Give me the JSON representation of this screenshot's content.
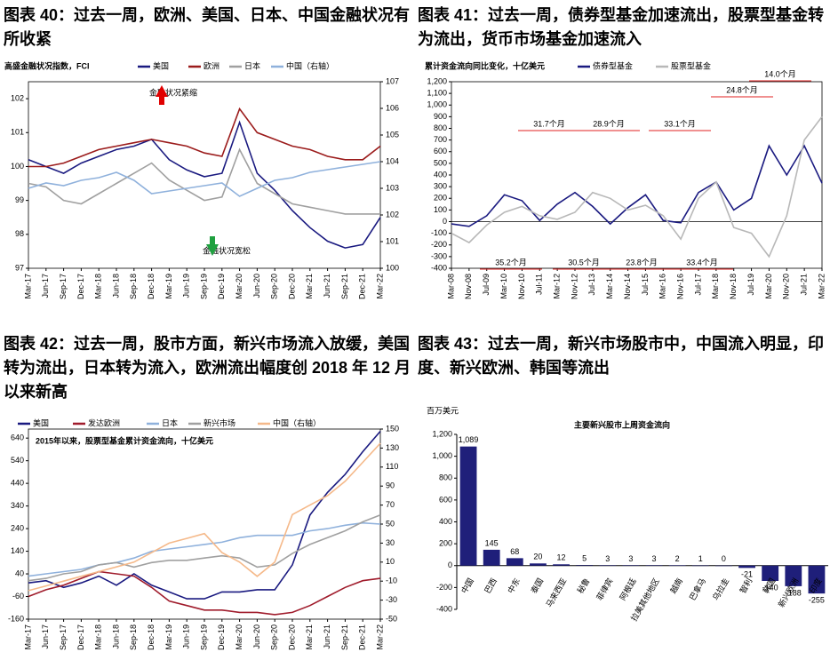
{
  "chart_data": [
    {
      "type": "line",
      "title": "图表 40：过去一周，欧洲、美国、日本、中国金融状况有所收紧",
      "ylabel": "高盛金融状况指数，FCI",
      "categories": [
        "Mar-17",
        "Jun-17",
        "Sep-17",
        "Dec-17",
        "Mar-18",
        "Jun-18",
        "Sep-18",
        "Dec-18",
        "Mar-19",
        "Jun-19",
        "Sep-19",
        "Dec-19",
        "Mar-20",
        "Jun-20",
        "Sep-20",
        "Dec-20",
        "Mar-21",
        "Jun-21",
        "Sep-21",
        "Dec-21",
        "Mar-22"
      ],
      "series": [
        {
          "name": "美国",
          "color": "#1a1a80",
          "values": [
            100.2,
            100.0,
            99.8,
            100.1,
            100.3,
            100.5,
            100.6,
            100.8,
            100.2,
            99.9,
            99.7,
            99.8,
            101.3,
            99.8,
            99.3,
            98.7,
            98.2,
            97.8,
            97.6,
            97.7,
            98.5
          ]
        },
        {
          "name": "欧洲",
          "color": "#9b1b1b",
          "values": [
            100.0,
            100.0,
            100.1,
            100.3,
            100.5,
            100.6,
            100.7,
            100.8,
            100.7,
            100.6,
            100.4,
            100.3,
            101.7,
            101.0,
            100.8,
            100.6,
            100.5,
            100.3,
            100.2,
            100.2,
            100.6
          ]
        },
        {
          "name": "日本",
          "color": "#a0a0a0",
          "values": [
            99.5,
            99.4,
            99.0,
            98.9,
            99.2,
            99.5,
            99.8,
            100.1,
            99.6,
            99.3,
            99.0,
            99.1,
            100.5,
            99.5,
            99.2,
            98.9,
            98.8,
            98.7,
            98.6,
            98.6,
            98.6
          ]
        },
        {
          "name": "中国（右轴）",
          "color": "#8fb1dc",
          "axis": "y2",
          "values": [
            103.0,
            103.2,
            103.1,
            103.3,
            103.4,
            103.6,
            103.3,
            102.8,
            102.9,
            103.0,
            103.1,
            103.2,
            102.7,
            103.0,
            103.3,
            103.4,
            103.6,
            103.7,
            103.8,
            103.9,
            104.0
          ]
        }
      ],
      "ylim": [
        97,
        102.5
      ],
      "yticks": [
        97,
        98,
        99,
        100,
        101,
        102
      ],
      "y2lim": [
        100,
        107
      ],
      "y2ticks": [
        100,
        101,
        102,
        103,
        104,
        105,
        106,
        107
      ],
      "annotations": [
        "金融状况紧缩",
        "金融状况宽松"
      ]
    },
    {
      "type": "line",
      "title": "图表 41：过去一周，债券型基金加速流出，股票型基金转为流出，货币市场基金加速流入",
      "ylabel": "累计资金流向同比变化，十亿美元",
      "categories": [
        "Mar-08",
        "Nov-08",
        "Jul-09",
        "Mar-10",
        "Nov-10",
        "Jul-11",
        "Mar-12",
        "Nov-12",
        "Jul-13",
        "Mar-14",
        "Nov-14",
        "Jul-15",
        "Mar-16",
        "Nov-16",
        "Jul-17",
        "Mar-18",
        "Nov-18",
        "Jul-19",
        "Mar-20",
        "Nov-20",
        "Jul-21",
        "Mar-22"
      ],
      "series": [
        {
          "name": "债券型基金",
          "color": "#1a1a80",
          "values": [
            -20,
            -40,
            50,
            230,
            180,
            10,
            150,
            250,
            130,
            -20,
            120,
            230,
            10,
            -10,
            250,
            340,
            100,
            200,
            650,
            400,
            650,
            330
          ]
        },
        {
          "name": "股票型基金",
          "color": "#b8b8b8",
          "values": [
            -100,
            -180,
            -30,
            80,
            130,
            50,
            20,
            80,
            250,
            200,
            100,
            140,
            50,
            -150,
            200,
            340,
            -50,
            -100,
            -300,
            50,
            700,
            900
          ]
        }
      ],
      "ylim": [
        -400,
        1200
      ],
      "yticks": [
        -400,
        -300,
        -200,
        -100,
        0,
        100,
        200,
        300,
        400,
        500,
        600,
        700,
        800,
        900,
        {
          "value": 1000,
          "label": "1,000"
        },
        {
          "value": 1100,
          "label": "1,100"
        },
        {
          "value": 1200,
          "label": "1,200"
        }
      ],
      "annotations": [
        "31.7个月",
        "28.9个月",
        "33.1个月",
        "24.8个月",
        "14.0个月",
        "35.2个月",
        "30.5个月",
        "23.8个月",
        "33.4个月"
      ]
    },
    {
      "type": "line",
      "title": "图表 42：过去一周，股市方面，新兴市场流入放缓，美国转为流出，日本转为流入，欧洲流出幅度创 2018 年 12 月以来新高",
      "ylabel": "2015年以来，股票型基金累计资金流向，十亿美元",
      "categories": [
        "Mar-17",
        "Jun-17",
        "Sep-17",
        "Dec-17",
        "Mar-18",
        "Jun-18",
        "Sep-18",
        "Dec-18",
        "Mar-19",
        "Jun-19",
        "Sep-19",
        "Dec-19",
        "Mar-20",
        "Jun-20",
        "Sep-20",
        "Dec-20",
        "Mar-21",
        "Jun-21",
        "Sep-21",
        "Dec-21",
        "Mar-22"
      ],
      "series": [
        {
          "name": "美国",
          "color": "#1a1a80",
          "values": [
            0,
            10,
            -20,
            0,
            30,
            -10,
            40,
            -10,
            -40,
            -70,
            -70,
            -40,
            -40,
            -30,
            -30,
            80,
            300,
            400,
            480,
            580,
            670
          ]
        },
        {
          "name": "发达欧洲",
          "color": "#a01c2c",
          "values": [
            -60,
            -30,
            -10,
            20,
            50,
            40,
            30,
            -20,
            -80,
            -100,
            -120,
            -120,
            -130,
            -130,
            -140,
            -130,
            -100,
            -60,
            -20,
            10,
            20
          ]
        },
        {
          "name": "日本",
          "color": "#8fb1dc",
          "values": [
            30,
            40,
            50,
            60,
            80,
            90,
            110,
            140,
            150,
            160,
            170,
            180,
            200,
            210,
            210,
            210,
            230,
            240,
            255,
            265,
            260
          ]
        },
        {
          "name": "新兴市场",
          "color": "#a0a0a0",
          "values": [
            10,
            20,
            40,
            50,
            80,
            90,
            70,
            90,
            100,
            100,
            110,
            120,
            110,
            70,
            80,
            130,
            170,
            200,
            230,
            270,
            300
          ]
        },
        {
          "name": "中国（右轴）",
          "color": "#f5b98a",
          "axis": "y2",
          "values": [
            -20,
            -15,
            -10,
            -5,
            0,
            5,
            10,
            20,
            30,
            35,
            40,
            20,
            10,
            -5,
            10,
            60,
            70,
            80,
            95,
            115,
            135
          ]
        }
      ],
      "ylim": [
        -160,
        680
      ],
      "yticks": [
        -160,
        -60,
        40,
        140,
        240,
        340,
        440,
        540,
        640
      ],
      "y2lim": [
        -50,
        150
      ],
      "y2ticks": [
        -50,
        -30,
        -10,
        10,
        30,
        50,
        70,
        90,
        110,
        130,
        150
      ]
    },
    {
      "type": "bar",
      "title": "图表 43：过去一周，新兴市场股市中，中国流入明显，印度、新兴欧洲、韩国等流出",
      "subtitle": "主要新兴股市上周资金流向",
      "ylabel": "百万美元",
      "categories": [
        "中国",
        "巴西",
        "中东",
        "泰国",
        "马来西亚",
        "秘鲁",
        "菲律宾",
        "阿根廷",
        "拉美其他地区",
        "越南",
        "巴拿马",
        "乌拉圭",
        "智利",
        "韩国",
        "新兴欧洲",
        "印度"
      ],
      "values": [
        1089,
        145,
        68,
        20,
        12,
        5,
        3,
        3,
        3,
        2,
        1,
        0,
        -21,
        -140,
        -188,
        -255
      ],
      "value_labels": [
        "1,089",
        "145",
        "68",
        "20",
        "12",
        "5",
        "3",
        "3",
        "3",
        "2",
        "1",
        "0",
        "-21",
        "-140",
        "-188",
        "-255"
      ],
      "color": "#1f1f7a",
      "negative_label_color": "#e02020",
      "ylim": [
        -400,
        1200
      ],
      "yticks": [
        -400,
        -200,
        0,
        200,
        400,
        600,
        800,
        {
          "value": 1000,
          "label": "1,000"
        },
        {
          "value": 1200,
          "label": "1,200"
        }
      ]
    }
  ]
}
